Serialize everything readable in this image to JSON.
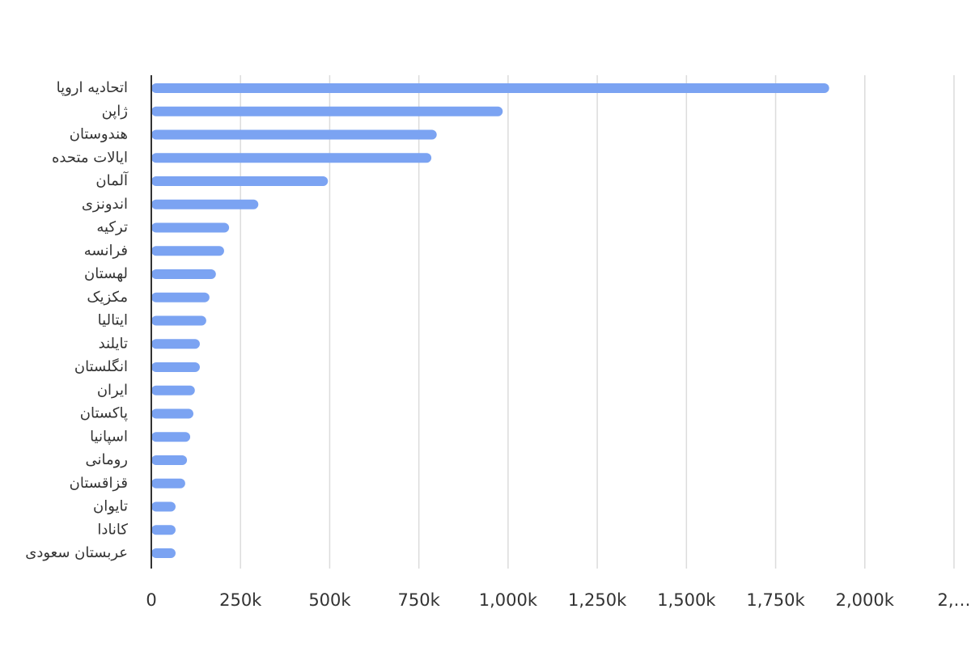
{
  "chart_data": {
    "type": "hbar",
    "color": "#7ba3f2",
    "grid": true,
    "categories": [
      "اتحادیه اروپا",
      "ژاپن",
      "هندوستان",
      "ایالات متحده",
      "آلمان",
      "اندونزی",
      "ترکیه",
      "فرانسه",
      "لهستان",
      "مکزیک",
      "ایتالیا",
      "تایلند",
      "انگلستان",
      "ایران",
      "پاکستان",
      "اسپانیا",
      "رومانی",
      "قزاقستان",
      "تایوان",
      "کانادا",
      "عربستان سعودی"
    ],
    "values": [
      1900000,
      985000,
      800000,
      785000,
      495000,
      300000,
      218000,
      204000,
      181000,
      163000,
      154000,
      136000,
      136000,
      122000,
      118000,
      109000,
      100000,
      95000,
      68000,
      68000,
      68000
    ],
    "xlim": [
      0,
      2250000
    ],
    "xticks": [
      0,
      {
        "value": 250000,
        "label": "250k"
      },
      {
        "value": 500000,
        "label": "500k"
      },
      {
        "value": 750000,
        "label": "750k"
      },
      {
        "value": 1000000,
        "label": "1,000k"
      },
      {
        "value": 1250000,
        "label": "1,250k"
      },
      {
        "value": 1500000,
        "label": "1,500k"
      },
      {
        "value": 1750000,
        "label": "1,750k"
      },
      {
        "value": 2000000,
        "label": "2,000k"
      },
      {
        "value": 2250000,
        "label": "2,…"
      }
    ]
  }
}
